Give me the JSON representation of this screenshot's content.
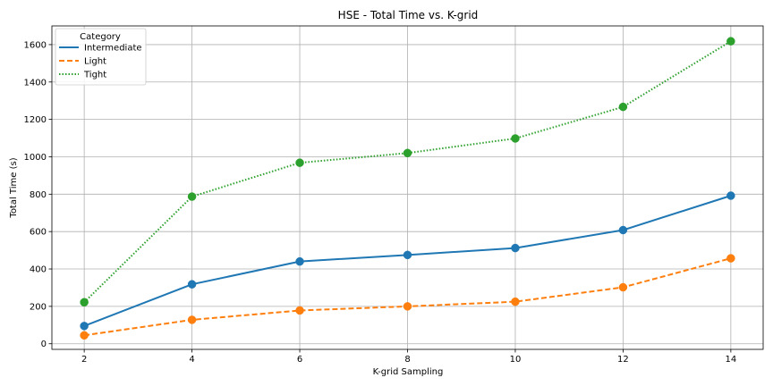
{
  "chart_data": {
    "type": "line",
    "title": "HSE - Total Time vs. K-grid",
    "xlabel": "K-grid Sampling",
    "ylabel": "Total Time (s)",
    "x": [
      2,
      4,
      6,
      8,
      10,
      12,
      14
    ],
    "xlim": [
      1.4,
      14.6
    ],
    "ylim": [
      -30,
      1700
    ],
    "xticks": [
      2,
      4,
      6,
      8,
      10,
      12,
      14
    ],
    "yticks": [
      0,
      200,
      400,
      600,
      800,
      1000,
      1200,
      1400,
      1600
    ],
    "grid": true,
    "legend": {
      "title": "Category",
      "placement": "top-left"
    },
    "series": [
      {
        "name": "Intermediate",
        "values": [
          95,
          318,
          440,
          475,
          512,
          608,
          792
        ],
        "color": "#1f77b4",
        "style": "solid"
      },
      {
        "name": "Light",
        "values": [
          45,
          128,
          178,
          200,
          225,
          302,
          457
        ],
        "color": "#ff7f0e",
        "style": "dashed"
      },
      {
        "name": "Tight",
        "values": [
          222,
          787,
          968,
          1020,
          1098,
          1267,
          1618
        ],
        "color": "#2ca02c",
        "style": "dotted"
      }
    ]
  }
}
